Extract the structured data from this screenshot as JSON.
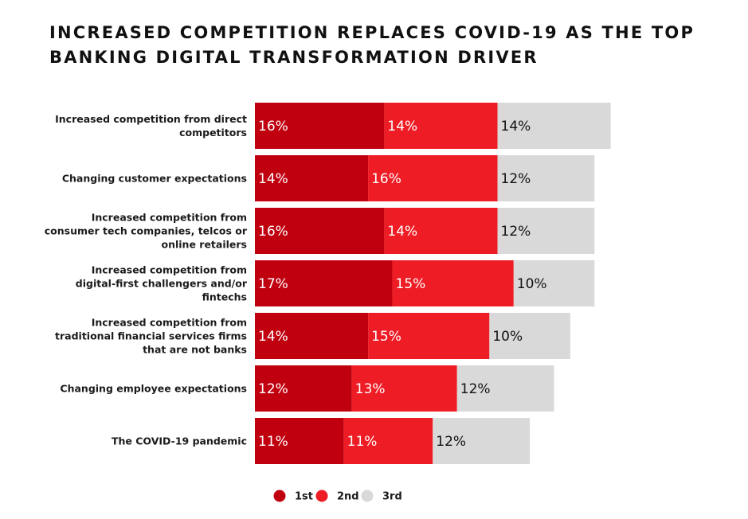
{
  "title_lines": [
    "INCREASED COMPETITION REPLACES COVID-19 AS THE TOP",
    "BANKING DIGITAL TRANSFORMATION DRIVER"
  ],
  "colors": {
    "first": "#c0000f",
    "second": "#ee1c25",
    "third": "#d9d9d9",
    "text_on_dark": "#ffffff",
    "text_on_light": "#111111"
  },
  "chart_data": {
    "type": "bar",
    "orientation": "horizontal",
    "stacked": true,
    "categories": [
      [
        "Increased competition from direct",
        "competitors"
      ],
      [
        "Changing customer expectations"
      ],
      [
        "Increased competition from",
        "consumer tech companies, telcos or",
        "online retailers"
      ],
      [
        "Increased competition from",
        "digital-first challengers and/or",
        "fintechs"
      ],
      [
        "Increased competition from",
        "traditional financial services firms",
        "that are not banks"
      ],
      [
        "Changing employee expectations"
      ],
      [
        "The COVID-19 pandemic"
      ]
    ],
    "series": [
      {
        "name": "1st",
        "values": [
          16,
          14,
          16,
          17,
          14,
          12,
          11
        ]
      },
      {
        "name": "2nd",
        "values": [
          14,
          16,
          14,
          15,
          15,
          13,
          11
        ]
      },
      {
        "name": "3rd",
        "values": [
          14,
          12,
          12,
          10,
          10,
          12,
          12
        ]
      }
    ],
    "value_suffix": "%",
    "legend_position": "bottom",
    "grid": false
  }
}
